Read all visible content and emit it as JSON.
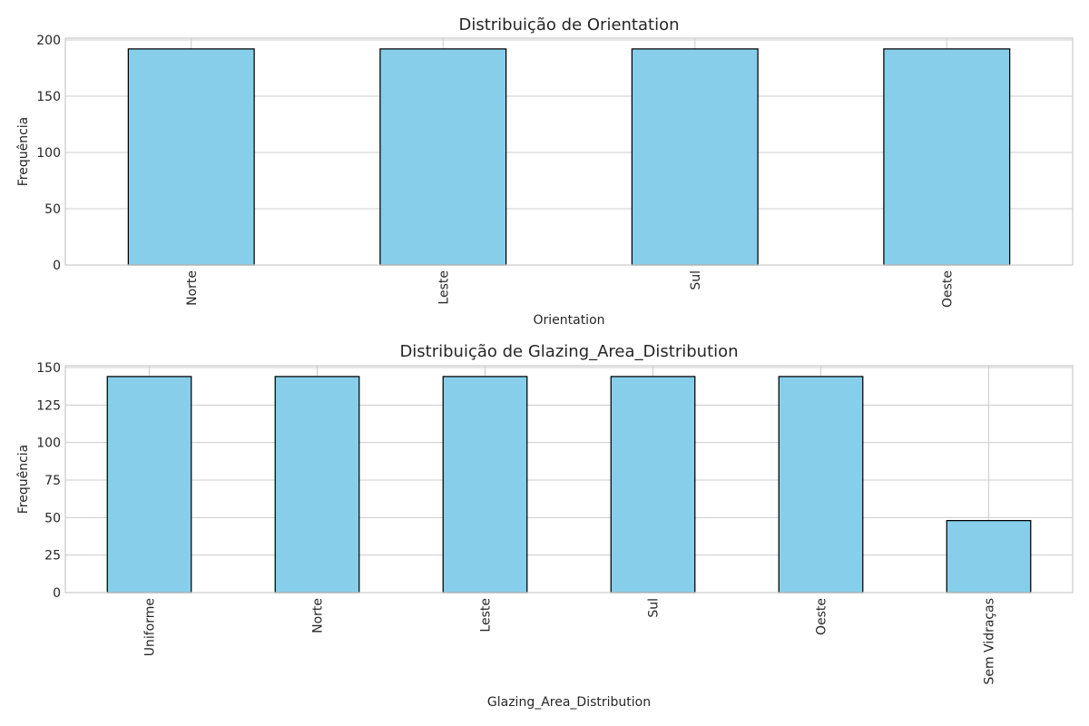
{
  "chart_data": [
    {
      "type": "bar",
      "title": "Distribuição de Orientation",
      "xlabel": "Orientation",
      "ylabel": "Frequência",
      "categories": [
        "Norte",
        "Leste",
        "Sul",
        "Oeste"
      ],
      "values": [
        192,
        192,
        192,
        192
      ],
      "ylim": [
        0,
        201.6
      ],
      "yticks": [
        0,
        50,
        100,
        150,
        200
      ],
      "grid": true,
      "bar_color": "#87CEEB",
      "edge_color": "#000000"
    },
    {
      "type": "bar",
      "title": "Distribuição de Glazing_Area_Distribution",
      "xlabel": "Glazing_Area_Distribution",
      "ylabel": "Frequência",
      "categories": [
        "Uniforme",
        "Norte",
        "Leste",
        "Sul",
        "Oeste",
        "Sem Vidraças"
      ],
      "values": [
        144,
        144,
        144,
        144,
        144,
        48
      ],
      "ylim": [
        0,
        151.2
      ],
      "yticks": [
        0,
        25,
        50,
        75,
        100,
        125,
        150
      ],
      "grid": true,
      "bar_color": "#87CEEB",
      "edge_color": "#000000"
    }
  ]
}
